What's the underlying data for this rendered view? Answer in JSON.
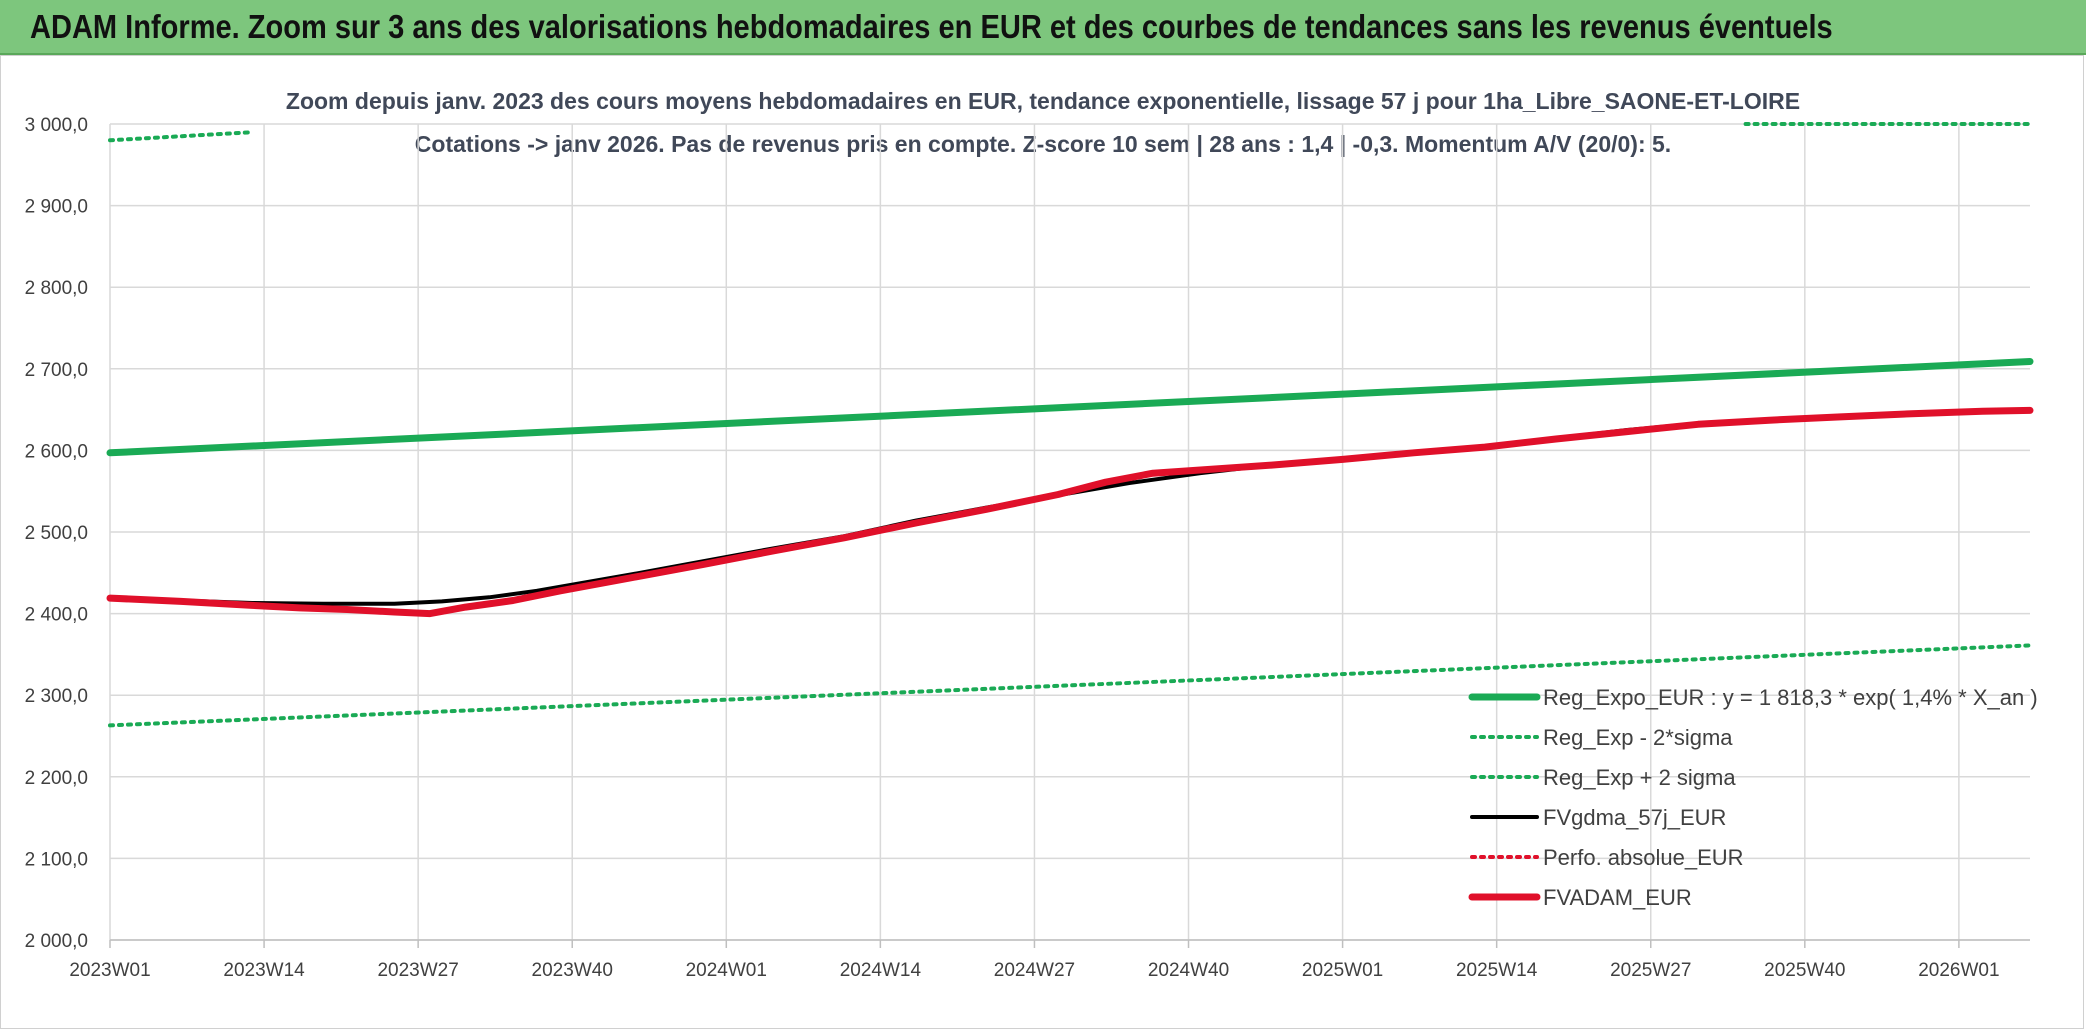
{
  "header": {
    "title": "ADAM Informe. Zoom sur 3 ans des valorisations hebdomadaires en EUR et des courbes de tendances sans les revenus éventuels"
  },
  "chart_data": {
    "type": "line",
    "title_line1": "Zoom depuis janv. 2023 des cours moyens hebdomadaires en EUR, tendance exponentielle, lissage 57 j pour 1ha_Libre_SAONE-ET-LOIRE",
    "title_line2": "Cotations -> janv 2026. Pas de revenus pris en compte. Z-score 10 sem | 28 ans : 1,4 | -0,3. Momentum A/V (20/0): 5.",
    "xlabel": "",
    "ylabel": "",
    "x_ticks": [
      "2023W01",
      "2023W14",
      "2023W27",
      "2023W40",
      "2024W01",
      "2024W14",
      "2024W27",
      "2024W40",
      "2025W01",
      "2025W14",
      "2025W27",
      "2025W40",
      "2026W01"
    ],
    "x_range": [
      0,
      162
    ],
    "y_ticks": [
      "2 000,0",
      "2 100,0",
      "2 200,0",
      "2 300,0",
      "2 400,0",
      "2 500,0",
      "2 600,0",
      "2 700,0",
      "2 800,0",
      "2 900,0",
      "3 000,0"
    ],
    "ylim": [
      2000,
      3000
    ],
    "grid": true,
    "legend_position": "right",
    "series": [
      {
        "name": "Reg_Expo_EUR : y = 1 818,3 * exp( 1,4% *  X_an )",
        "color": "#1aaa55",
        "style": "solid-thick",
        "points": [
          [
            0,
            2597
          ],
          [
            162,
            2709
          ]
        ]
      },
      {
        "name": "Reg_Exp - 2*sigma",
        "color": "#1aaa55",
        "style": "dotted",
        "points": [
          [
            0,
            2263
          ],
          [
            162,
            2361
          ]
        ]
      },
      {
        "name": "Reg_Exp + 2 sigma",
        "color": "#1aaa55",
        "style": "dotted",
        "segments": [
          [
            [
              0,
              2980
            ],
            [
              12,
              2990
            ]
          ],
          [
            [
              138,
              3000
            ],
            [
              162,
              3000
            ]
          ]
        ]
      },
      {
        "name": "FVgdma_57j_EUR",
        "color": "#000000",
        "style": "solid",
        "points": [
          [
            0,
            2419
          ],
          [
            6,
            2416
          ],
          [
            12,
            2413
          ],
          [
            18,
            2412
          ],
          [
            24,
            2412
          ],
          [
            28,
            2415
          ],
          [
            32,
            2420
          ],
          [
            36,
            2428
          ],
          [
            40,
            2438
          ],
          [
            44,
            2448
          ],
          [
            50,
            2464
          ],
          [
            56,
            2480
          ],
          [
            62,
            2495
          ],
          [
            68,
            2514
          ],
          [
            74,
            2530
          ],
          [
            80,
            2545
          ],
          [
            86,
            2560
          ],
          [
            92,
            2572
          ],
          [
            98,
            2582
          ],
          [
            104,
            2590
          ],
          [
            110,
            2597
          ],
          [
            116,
            2605
          ],
          [
            122,
            2615
          ],
          [
            128,
            2625
          ],
          [
            134,
            2633
          ],
          [
            140,
            2638
          ],
          [
            146,
            2642
          ],
          [
            152,
            2645
          ],
          [
            158,
            2648
          ],
          [
            162,
            2649
          ]
        ]
      },
      {
        "name": "Perfo. absolue_EUR",
        "color": "#e0102a",
        "style": "dotted",
        "points": []
      },
      {
        "name": "FVADAM_EUR",
        "color": "#e0102a",
        "style": "solid-thick",
        "points": [
          [
            0,
            2419
          ],
          [
            6,
            2415
          ],
          [
            12,
            2410
          ],
          [
            16,
            2407
          ],
          [
            20,
            2405
          ],
          [
            24,
            2402
          ],
          [
            27,
            2400
          ],
          [
            30,
            2408
          ],
          [
            34,
            2416
          ],
          [
            38,
            2428
          ],
          [
            44,
            2444
          ],
          [
            50,
            2460
          ],
          [
            56,
            2477
          ],
          [
            62,
            2493
          ],
          [
            68,
            2511
          ],
          [
            74,
            2528
          ],
          [
            80,
            2546
          ],
          [
            84,
            2561
          ],
          [
            88,
            2572
          ],
          [
            92,
            2576
          ],
          [
            98,
            2582
          ],
          [
            104,
            2589
          ],
          [
            110,
            2597
          ],
          [
            116,
            2604
          ],
          [
            122,
            2614
          ],
          [
            128,
            2623
          ],
          [
            134,
            2632
          ],
          [
            140,
            2637
          ],
          [
            146,
            2641
          ],
          [
            152,
            2645
          ],
          [
            158,
            2648
          ],
          [
            162,
            2649
          ]
        ]
      }
    ]
  }
}
